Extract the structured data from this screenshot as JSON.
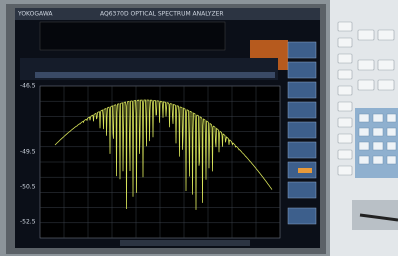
{
  "header": {
    "brand": "YOKOGAWA",
    "title": "AQ6370D OPTICAL SPECTRUM ANALYZER"
  },
  "axis": {
    "y_labels": [
      "-46.5",
      "-49.5",
      "-50.5",
      "-52.5"
    ]
  }
}
